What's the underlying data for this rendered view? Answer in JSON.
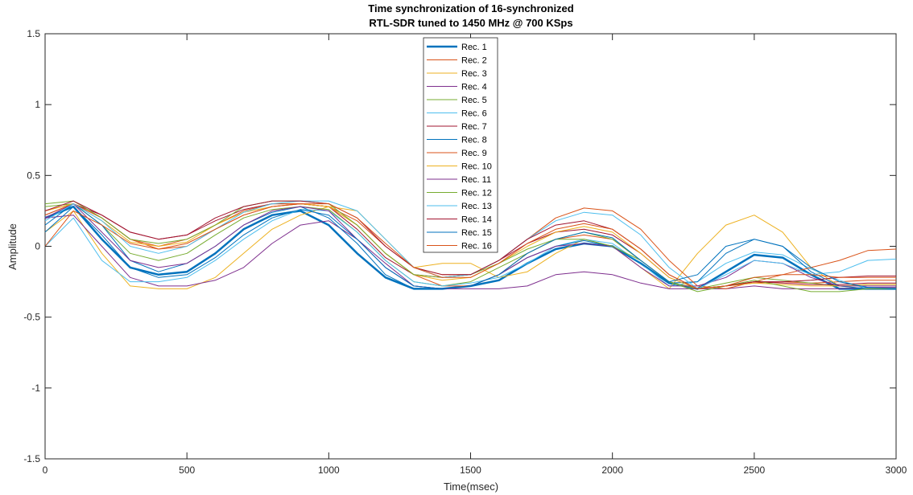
{
  "chart_data": {
    "type": "line",
    "title": "Time synchronization of 16-synchronized",
    "subtitle": "RTL-SDR tuned to 1450 MHz @ 700 KSps",
    "xlabel": "Time(msec)",
    "ylabel": "Amplitude",
    "xlim": [
      0,
      3000
    ],
    "ylim": [
      -1.5,
      1.5
    ],
    "xticks": [
      0,
      500,
      1000,
      1500,
      2000,
      2500,
      3000
    ],
    "yticks": [
      1.5,
      1,
      0.5,
      0,
      -0.5,
      -1,
      -1.5
    ],
    "xtick_labels": [
      "0",
      "500",
      "1000",
      "1500",
      "2000",
      "2500",
      "3000"
    ],
    "ytick_labels": [
      "1.5",
      "1",
      "0.5",
      "0",
      "-0.5",
      "-1",
      "-1.5"
    ],
    "grid": false,
    "legend_position": "top-center",
    "x": [
      0,
      100,
      200,
      300,
      400,
      500,
      600,
      700,
      800,
      900,
      1000,
      1100,
      1200,
      1300,
      1400,
      1500,
      1600,
      1700,
      1800,
      1900,
      2000,
      2100,
      2200,
      2300,
      2400,
      2500,
      2600,
      2700,
      2800,
      2900,
      3000
    ],
    "series": [
      {
        "name": "Rec. 1",
        "color": "#0072BD",
        "width": 2.5,
        "values": [
          0.2,
          0.28,
          0.05,
          -0.15,
          -0.2,
          -0.18,
          -0.05,
          0.12,
          0.22,
          0.25,
          0.15,
          -0.05,
          -0.22,
          -0.3,
          -0.3,
          -0.28,
          -0.24,
          -0.12,
          -0.02,
          0.02,
          0.0,
          -0.12,
          -0.26,
          -0.3,
          -0.18,
          -0.06,
          -0.08,
          -0.2,
          -0.3,
          -0.3,
          -0.3
        ]
      },
      {
        "name": "Rec. 2",
        "color": "#D95319",
        "width": 1,
        "values": [
          0.25,
          0.3,
          0.2,
          0.05,
          -0.02,
          0.0,
          0.12,
          0.22,
          0.28,
          0.3,
          0.28,
          0.15,
          -0.05,
          -0.2,
          -0.28,
          -0.28,
          -0.2,
          -0.05,
          0.05,
          0.08,
          0.05,
          -0.1,
          -0.25,
          -0.3,
          -0.28,
          -0.26,
          -0.25,
          -0.26,
          -0.25,
          -0.24,
          -0.24
        ]
      },
      {
        "name": "Rec. 3",
        "color": "#EDB120",
        "width": 1,
        "values": [
          0.1,
          0.25,
          -0.05,
          -0.28,
          -0.3,
          -0.3,
          -0.22,
          -0.05,
          0.12,
          0.22,
          0.28,
          0.25,
          0.05,
          -0.15,
          -0.12,
          -0.12,
          -0.22,
          -0.18,
          -0.05,
          0.05,
          0.0,
          -0.15,
          -0.3,
          -0.05,
          0.15,
          0.22,
          0.1,
          -0.15,
          -0.28,
          -0.3,
          -0.3
        ]
      },
      {
        "name": "Rec. 4",
        "color": "#7E2F8E",
        "width": 1,
        "values": [
          0.2,
          0.22,
          0.0,
          -0.22,
          -0.28,
          -0.28,
          -0.24,
          -0.15,
          0.02,
          0.15,
          0.18,
          0.05,
          -0.12,
          -0.28,
          -0.3,
          -0.3,
          -0.3,
          -0.28,
          -0.2,
          -0.18,
          -0.2,
          -0.26,
          -0.3,
          -0.3,
          -0.3,
          -0.28,
          -0.3,
          -0.3,
          -0.3,
          -0.29,
          -0.29
        ]
      },
      {
        "name": "Rec. 5",
        "color": "#77AC30",
        "width": 1,
        "values": [
          0.28,
          0.3,
          0.15,
          -0.05,
          -0.1,
          -0.05,
          0.08,
          0.2,
          0.26,
          0.28,
          0.26,
          0.1,
          -0.1,
          -0.25,
          -0.28,
          -0.25,
          -0.15,
          -0.05,
          0.05,
          0.1,
          0.05,
          -0.1,
          -0.25,
          -0.3,
          -0.26,
          -0.22,
          -0.24,
          -0.26,
          -0.28,
          -0.27,
          -0.27
        ]
      },
      {
        "name": "Rec. 6",
        "color": "#4DBEEE",
        "width": 1,
        "values": [
          0.0,
          0.2,
          -0.1,
          -0.25,
          -0.25,
          -0.22,
          -0.1,
          0.05,
          0.18,
          0.26,
          0.25,
          0.1,
          -0.1,
          -0.25,
          -0.28,
          -0.26,
          -0.22,
          -0.12,
          0.0,
          0.05,
          0.02,
          -0.12,
          -0.28,
          -0.25,
          -0.12,
          -0.04,
          -0.06,
          -0.16,
          -0.24,
          -0.3,
          -0.3
        ]
      },
      {
        "name": "Rec. 7",
        "color": "#A2142F",
        "width": 1,
        "values": [
          0.22,
          0.3,
          0.22,
          0.1,
          0.05,
          0.08,
          0.18,
          0.26,
          0.3,
          0.3,
          0.28,
          0.12,
          -0.08,
          -0.2,
          -0.22,
          -0.2,
          -0.1,
          0.02,
          0.1,
          0.12,
          0.08,
          -0.05,
          -0.22,
          -0.3,
          -0.28,
          -0.25,
          -0.26,
          -0.27,
          -0.27,
          -0.26,
          -0.26
        ]
      },
      {
        "name": "Rec. 8",
        "color": "#0072BD",
        "width": 1,
        "values": [
          0.15,
          0.3,
          0.15,
          -0.1,
          -0.18,
          -0.12,
          0.0,
          0.15,
          0.24,
          0.28,
          0.2,
          0.02,
          -0.2,
          -0.3,
          -0.3,
          -0.28,
          -0.2,
          -0.08,
          0.0,
          0.04,
          0.0,
          -0.12,
          -0.26,
          -0.25,
          -0.05,
          0.05,
          0.0,
          -0.18,
          -0.28,
          -0.3,
          -0.3
        ]
      },
      {
        "name": "Rec. 9",
        "color": "#D95319",
        "width": 1,
        "values": [
          0.22,
          0.3,
          0.2,
          0.05,
          0.0,
          0.05,
          0.15,
          0.25,
          0.3,
          0.3,
          0.28,
          0.18,
          0.0,
          -0.15,
          -0.2,
          -0.2,
          -0.1,
          0.05,
          0.2,
          0.27,
          0.25,
          0.12,
          -0.1,
          -0.28,
          -0.3,
          -0.25,
          -0.2,
          -0.15,
          -0.1,
          -0.03,
          -0.02
        ]
      },
      {
        "name": "Rec. 10",
        "color": "#EDB120",
        "width": 1,
        "values": [
          0.25,
          0.3,
          0.18,
          0.03,
          0.0,
          0.03,
          0.15,
          0.24,
          0.28,
          0.3,
          0.28,
          0.15,
          -0.05,
          -0.2,
          -0.24,
          -0.22,
          -0.12,
          0.0,
          0.1,
          0.14,
          0.1,
          -0.05,
          -0.22,
          -0.3,
          -0.28,
          -0.26,
          -0.27,
          -0.28,
          -0.28,
          -0.27,
          -0.27
        ]
      },
      {
        "name": "Rec. 11",
        "color": "#7E2F8E",
        "width": 1,
        "values": [
          0.2,
          0.3,
          0.1,
          -0.1,
          -0.15,
          -0.12,
          0.0,
          0.15,
          0.25,
          0.28,
          0.25,
          0.05,
          -0.15,
          -0.28,
          -0.3,
          -0.28,
          -0.2,
          -0.08,
          0.0,
          0.02,
          0.0,
          -0.15,
          -0.28,
          -0.28,
          -0.22,
          -0.1,
          -0.12,
          -0.22,
          -0.28,
          -0.28,
          -0.28
        ]
      },
      {
        "name": "Rec. 12",
        "color": "#77AC30",
        "width": 1,
        "values": [
          0.3,
          0.32,
          0.2,
          0.05,
          0.02,
          0.05,
          0.15,
          0.28,
          0.32,
          0.32,
          0.3,
          0.15,
          -0.05,
          -0.2,
          -0.22,
          -0.2,
          -0.12,
          -0.02,
          0.05,
          0.05,
          0.0,
          -0.1,
          -0.25,
          -0.32,
          -0.28,
          -0.24,
          -0.28,
          -0.32,
          -0.32,
          -0.3,
          -0.3
        ]
      },
      {
        "name": "Rec. 13",
        "color": "#4DBEEE",
        "width": 1,
        "values": [
          0.18,
          0.3,
          0.18,
          0.0,
          -0.05,
          0.0,
          0.12,
          0.24,
          0.3,
          0.32,
          0.32,
          0.25,
          0.05,
          -0.15,
          -0.22,
          -0.2,
          -0.1,
          0.05,
          0.18,
          0.24,
          0.22,
          0.08,
          -0.15,
          -0.3,
          -0.2,
          -0.1,
          -0.12,
          -0.2,
          -0.18,
          -0.1,
          -0.09
        ]
      },
      {
        "name": "Rec. 14",
        "color": "#A2142F",
        "width": 1,
        "values": [
          0.25,
          0.32,
          0.22,
          0.1,
          0.05,
          0.08,
          0.2,
          0.28,
          0.32,
          0.32,
          0.3,
          0.2,
          0.0,
          -0.15,
          -0.2,
          -0.2,
          -0.1,
          0.05,
          0.15,
          0.18,
          0.12,
          -0.02,
          -0.2,
          -0.3,
          -0.28,
          -0.25,
          -0.25,
          -0.24,
          -0.22,
          -0.21,
          -0.21
        ]
      },
      {
        "name": "Rec. 15",
        "color": "#0072BD",
        "width": 1,
        "values": [
          0.1,
          0.28,
          0.08,
          -0.15,
          -0.22,
          -0.2,
          -0.08,
          0.08,
          0.2,
          0.26,
          0.22,
          0.05,
          -0.15,
          -0.28,
          -0.3,
          -0.28,
          -0.2,
          -0.05,
          0.05,
          0.1,
          0.06,
          -0.1,
          -0.25,
          -0.2,
          0.0,
          0.05,
          0.0,
          -0.15,
          -0.25,
          -0.29,
          -0.3
        ]
      },
      {
        "name": "Rec. 16",
        "color": "#D95319",
        "width": 1,
        "values": [
          0.0,
          0.25,
          0.15,
          0.02,
          -0.02,
          0.02,
          0.12,
          0.22,
          0.28,
          0.3,
          0.3,
          0.2,
          0.02,
          -0.15,
          -0.22,
          -0.22,
          -0.12,
          0.02,
          0.12,
          0.16,
          0.12,
          -0.02,
          -0.2,
          -0.3,
          -0.28,
          -0.22,
          -0.2,
          -0.2,
          -0.22,
          -0.22,
          -0.22
        ]
      }
    ]
  }
}
